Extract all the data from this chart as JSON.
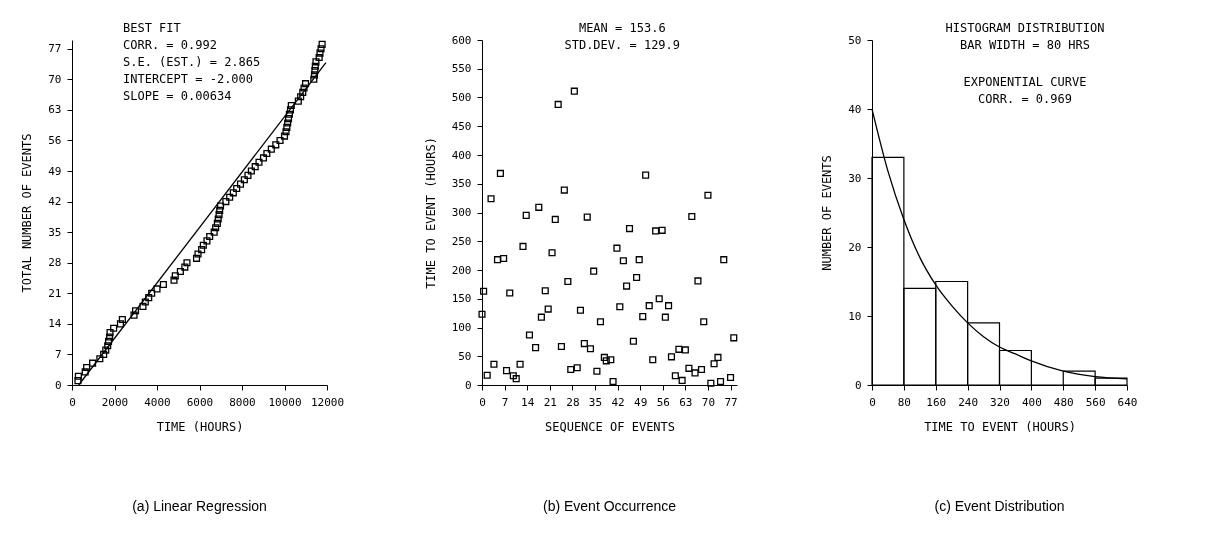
{
  "chart_data": [
    {
      "type": "scatter",
      "title": "(a) Linear Regression",
      "xlabel": "TIME (HOURS)",
      "ylabel": "TOTAL NUMBER OF EVENTS",
      "xlim": [
        0,
        12000
      ],
      "xticks": [
        0,
        2000,
        4000,
        6000,
        8000,
        10000,
        12000
      ],
      "ylim": [
        0,
        79
      ],
      "yticks": [
        0,
        7,
        14,
        21,
        28,
        35,
        42,
        49,
        56,
        63,
        70,
        77
      ],
      "grid": false,
      "annotations": [
        "BEST FIT",
        "CORR. = 0.992",
        "S.E. (EST.) = 2.865",
        "INTERCEPT = -2.000",
        "SLOPE = 0.00634"
      ],
      "series": [
        {
          "marker": "square",
          "color": "#000000",
          "x": [
            280,
            300,
            620,
            690,
            970,
            1310,
            1490,
            1590,
            1680,
            1720,
            1770,
            1790,
            1960,
            2280,
            2370,
            2920,
            2990,
            3340,
            3450,
            3610,
            3750,
            4000,
            4300,
            4800,
            4860,
            5100,
            5310,
            5410,
            5860,
            5930,
            6100,
            6180,
            6350,
            6480,
            6690,
            6760,
            6840,
            6880,
            6920,
            6950,
            6990,
            7240,
            7420,
            7590,
            7750,
            7930,
            8110,
            8280,
            8440,
            8620,
            8800,
            9010,
            9170,
            9380,
            9590,
            9790,
            10000,
            10070,
            10110,
            10150,
            10190,
            10230,
            10280,
            10320,
            10650,
            10760,
            10860,
            10920,
            10990,
            11380,
            11410,
            11430,
            11450,
            11480,
            11630,
            11670,
            11720,
            11770
          ],
          "values": [
            1,
            2,
            3,
            4,
            5,
            6,
            7,
            8,
            9,
            10,
            11,
            12,
            13,
            14,
            15,
            16,
            17,
            18,
            19,
            20,
            21,
            22,
            23,
            24,
            25,
            26,
            27,
            28,
            29,
            30,
            31,
            32,
            33,
            34,
            35,
            36,
            37,
            38,
            39,
            40,
            41,
            42,
            43,
            44,
            45,
            46,
            47,
            48,
            49,
            50,
            51,
            52,
            53,
            54,
            55,
            56,
            57,
            58,
            59,
            60,
            61,
            62,
            63,
            64,
            65,
            66,
            67,
            68,
            69,
            70,
            71,
            72,
            73,
            74,
            75,
            76,
            77,
            78
          ]
        },
        {
          "type": "line",
          "color": "#000000",
          "x": [
            315,
            11950
          ],
          "values": [
            0,
            73.8
          ]
        }
      ]
    },
    {
      "type": "scatter",
      "title": "(b) Event Occurrence",
      "xlabel": "SEQUENCE OF EVENTS",
      "ylabel": "TIME TO EVENT (HOURS)",
      "xlim": [
        0,
        79
      ],
      "xticks": [
        0,
        7,
        14,
        21,
        28,
        35,
        42,
        49,
        56,
        63,
        70,
        77
      ],
      "ylim": [
        0,
        600
      ],
      "yticks": [
        0,
        50,
        100,
        150,
        200,
        250,
        300,
        350,
        400,
        450,
        500,
        550,
        600
      ],
      "grid": false,
      "annotations": [
        "MEAN = 153.6",
        "STD.DEV. = 129.9"
      ],
      "series": [
        {
          "marker": "square",
          "color": "#000000",
          "x": [
            0,
            0.5,
            1.6,
            2.8,
            3.7,
            4.8,
            5.7,
            6.7,
            7.6,
            8.6,
            9.7,
            10.6,
            11.8,
            12.7,
            13.7,
            14.7,
            16.6,
            17.6,
            18.4,
            19.6,
            20.5,
            21.7,
            22.7,
            23.6,
            24.6,
            25.5,
            26.6,
            27.5,
            28.6,
            29.5,
            30.5,
            31.7,
            32.6,
            33.6,
            34.6,
            35.6,
            36.7,
            37.9,
            38.5,
            39.9,
            40.6,
            41.8,
            42.7,
            43.8,
            44.8,
            45.7,
            46.9,
            47.9,
            48.7,
            49.8,
            50.7,
            51.8,
            52.9,
            53.8,
            54.9,
            55.8,
            56.8,
            57.8,
            58.7,
            59.9,
            61,
            62,
            63,
            64.1,
            65,
            66,
            66.9,
            68,
            68.7,
            70,
            70.9,
            71.9,
            73.1,
            73.9,
            74.9,
            77,
            78
          ],
          "values": [
            123,
            163,
            17,
            324,
            36,
            218,
            368,
            220,
            25,
            160,
            16,
            11,
            36,
            241,
            295,
            87,
            65,
            309,
            118,
            164,
            132,
            230,
            288,
            488,
            67,
            339,
            180,
            27,
            511,
            30,
            130,
            72,
            292,
            63,
            198,
            24,
            110,
            48,
            42,
            44,
            6,
            238,
            136,
            216,
            172,
            272,
            76,
            187,
            218,
            119,
            365,
            138,
            44,
            268,
            150,
            269,
            118,
            138,
            49,
            16,
            62,
            8,
            61,
            29,
            293,
            21,
            181,
            27,
            110,
            330,
            3,
            37,
            48,
            6,
            218,
            13,
            82
          ]
        }
      ]
    },
    {
      "type": "histogram",
      "title": "(c) Event Distribution",
      "xlabel": "TIME TO EVENT (HOURS)",
      "ylabel": "NUMBER OF EVENTS",
      "xlim": [
        0,
        640
      ],
      "xticks": [
        0,
        80,
        160,
        240,
        320,
        400,
        480,
        560,
        640
      ],
      "ylim": [
        0,
        50
      ],
      "yticks": [
        0,
        10,
        20,
        30,
        40,
        50
      ],
      "grid": false,
      "annotations": [
        "HISTOGRAM DISTRIBUTION",
        "BAR WIDTH = 80 HRS",
        "EXPONENTIAL CURVE",
        "CORR. = 0.969"
      ],
      "bins": [
        0,
        80,
        160,
        240,
        320,
        400,
        480,
        560,
        640
      ],
      "values": [
        33,
        14,
        15,
        9,
        5,
        0,
        2,
        1
      ],
      "color": "#000000",
      "series": [
        {
          "type": "line",
          "color": "#000000",
          "x": [
            0,
            40,
            80,
            120,
            160,
            200,
            240,
            280,
            320,
            360,
            400,
            480,
            560,
            640
          ],
          "values": [
            40,
            31,
            24,
            18.5,
            14.5,
            11.5,
            9,
            7,
            5.5,
            4.5,
            3.5,
            2,
            1.2,
            0.9
          ]
        }
      ]
    }
  ]
}
